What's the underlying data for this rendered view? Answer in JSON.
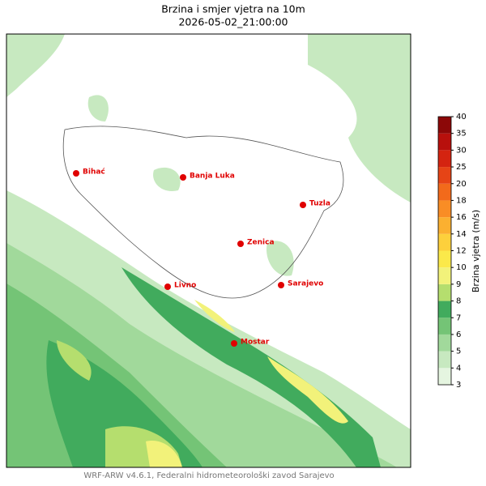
{
  "title": "Brzina i smjer vjetra na 10m",
  "subtitle": "2026-05-02_21:00:00",
  "cities": [
    "Bihać",
    "Banja Luka",
    "Tuzla",
    "Zenica",
    "Livno",
    "Sarajevo",
    "Mostar"
  ],
  "colorbar": {
    "label": "Brzina vjetra (m/s)",
    "ticks": [
      3,
      4,
      5,
      6,
      7,
      8,
      9,
      10,
      12,
      14,
      16,
      18,
      20,
      25,
      30,
      35,
      40
    ],
    "colors": [
      "#e5f5e0",
      "#c7e9c0",
      "#a1d99b",
      "#74c476",
      "#41ab5d",
      "#b5de6e",
      "#f2f27a",
      "#fbe94a",
      "#fdd03c",
      "#fbb030",
      "#f98d25",
      "#f26a1b",
      "#e64416",
      "#d42410",
      "#b8100c",
      "#8c0808"
    ]
  },
  "footer": "WRF-ARW v4.6.1, Federalni hidrometeorološki zavod Sarajevo"
}
